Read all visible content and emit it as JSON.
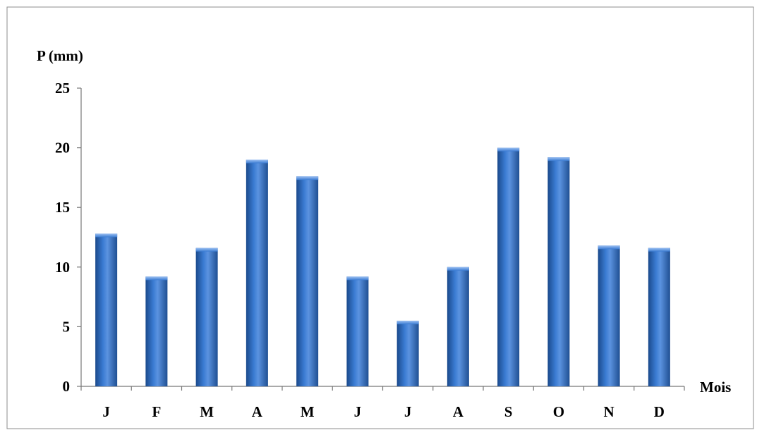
{
  "chart_data": {
    "type": "bar",
    "title": "",
    "ylabel": "P (mm)",
    "xlabel": "Mois",
    "categories": [
      "J",
      "F",
      "M",
      "A",
      "M",
      "J",
      "J",
      "A",
      "S",
      "O",
      "N",
      "D"
    ],
    "values": [
      12.8,
      9.2,
      11.6,
      19.0,
      17.6,
      9.2,
      5.5,
      10.0,
      20.0,
      19.2,
      11.8,
      11.6
    ],
    "ylim": [
      0,
      25
    ],
    "yticks": [
      "0",
      "5",
      "10",
      "15",
      "20",
      "25"
    ],
    "grid": false,
    "legend": "none",
    "bar_color": "#2f6cc0",
    "bar_dark": "#1b4a8c",
    "bar_light": "#6ea0e6"
  }
}
